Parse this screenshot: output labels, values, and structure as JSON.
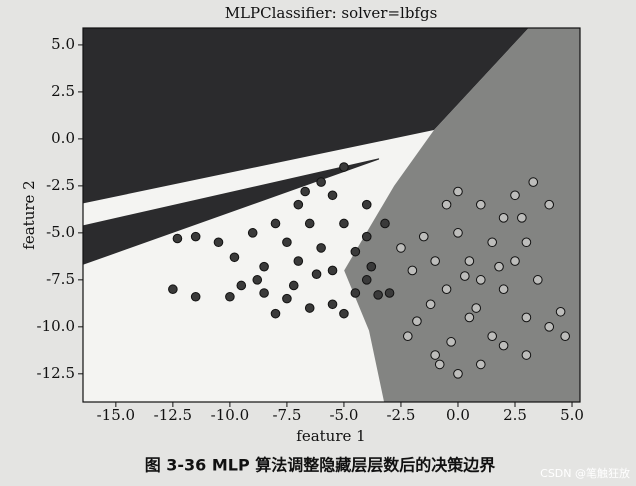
{
  "chart_data": {
    "type": "scatter",
    "title": "MLPClassifier: solver=lbfgs",
    "xlabel": "feature 1",
    "ylabel": "feature 2",
    "caption": "图 3-36   MLP 算法调整隐藏层层数后的决策边界",
    "watermark": "CSDN @笔触狂放",
    "xlim": [
      -16.44,
      5.35
    ],
    "ylim": [
      -14.0,
      5.9
    ],
    "xticks": [
      -15.0,
      -12.5,
      -10.0,
      -7.5,
      -5.0,
      -2.5,
      0.0,
      2.5,
      5.0
    ],
    "yticks": [
      5.0,
      2.5,
      0.0,
      -2.5,
      -5.0,
      -7.5,
      -10.0,
      -12.5
    ],
    "regions": [
      {
        "color": "#2b2b2d",
        "x": [
          -16.44,
          3.1,
          -1.05,
          -16.44
        ],
        "y": [
          5.9,
          5.9,
          0.47,
          -3.43
        ]
      },
      {
        "color": "#2b2b2d",
        "x": [
          -16.44,
          -3.46,
          -3.46,
          -16.44
        ],
        "y": [
          -4.6,
          -1.03,
          -1.1,
          -6.7
        ]
      },
      {
        "color": "#838482",
        "x": [
          3.1,
          5.35,
          5.35,
          -3.24,
          -3.9,
          -4.99,
          -2.8,
          -1.05
        ],
        "y": [
          5.9,
          5.9,
          -14.0,
          -14.0,
          -10.2,
          -7.0,
          -2.5,
          0.47
        ]
      }
    ],
    "series": [
      {
        "color": "#3a3a3a",
        "x": [
          -12.5,
          -11.5,
          -10,
          -9.5,
          -8.5,
          -8,
          -7.5,
          -6.5,
          -5.5,
          -5,
          -4.5,
          -4,
          -3.5,
          -3,
          -10.5,
          -9.8,
          -9,
          -8.5,
          -8,
          -7.5,
          -7,
          -7,
          -6.5,
          -6,
          -5.5,
          -5.5,
          -5,
          -4.5,
          -4,
          -4,
          -6,
          -6.7,
          -12.3,
          -11.5,
          -8.8,
          -7.2,
          -6.2,
          -3.8,
          -3.2,
          -5
        ],
        "y": [
          -8,
          -8.4,
          -8.4,
          -7.8,
          -8.2,
          -9.3,
          -8.5,
          -9,
          -8.8,
          -9.3,
          -8.2,
          -7.5,
          -8.3,
          -8.2,
          -5.5,
          -6.3,
          -5,
          -6.8,
          -4.5,
          -5.5,
          -3.5,
          -6.5,
          -4.5,
          -5.8,
          -3,
          -7,
          -4.5,
          -6,
          -3.5,
          -5.2,
          -2.3,
          -2.8,
          -5.3,
          -5.2,
          -7.5,
          -7.8,
          -7.2,
          -6.8,
          -4.5,
          -1.5
        ]
      },
      {
        "color": "#bdbdbb",
        "x": [
          -2.5,
          -2,
          -1.5,
          -1,
          -0.5,
          -0.5,
          0,
          0,
          0.5,
          0.5,
          1,
          1,
          1.5,
          1.5,
          2,
          2,
          2.5,
          2.5,
          3,
          3,
          3.5,
          4,
          4,
          4.5,
          4.7,
          -1.8,
          -2.2,
          -1,
          0,
          1,
          2,
          3,
          -0.3,
          0.8,
          1.8,
          -1.2,
          2.8,
          3.3,
          -0.8,
          0.3
        ],
        "y": [
          -5.8,
          -7,
          -5.2,
          -6.5,
          -3.5,
          -8,
          -2.8,
          -5,
          -6.5,
          -9.5,
          -3.5,
          -7.5,
          -5.5,
          -10.5,
          -4.2,
          -8,
          -6.5,
          -3,
          -9.5,
          -5.5,
          -7.5,
          -10,
          -3.5,
          -9.2,
          -10.5,
          -9.7,
          -10.5,
          -11.5,
          -12.5,
          -12,
          -11,
          -11.5,
          -10.8,
          -9,
          -6.8,
          -8.8,
          -4.2,
          -2.3,
          -12,
          -7.3
        ]
      }
    ]
  }
}
